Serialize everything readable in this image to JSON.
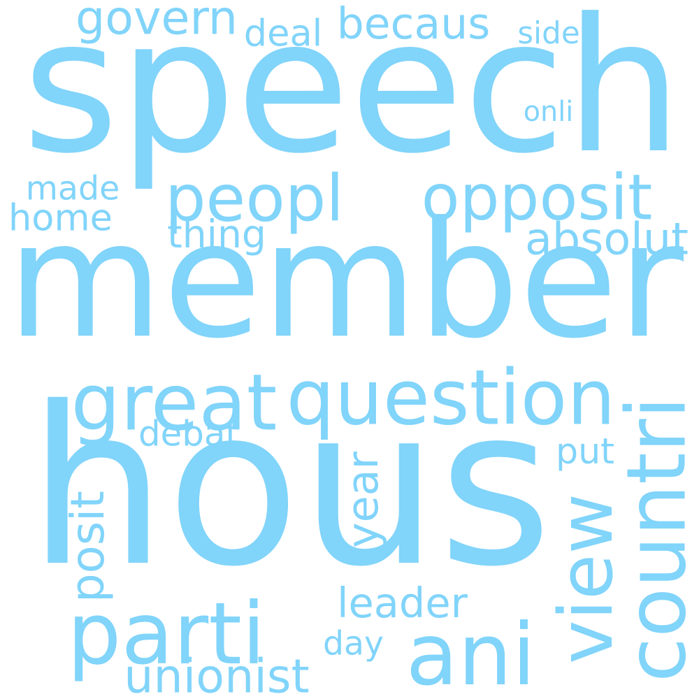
{
  "word_color": "#81D4FA",
  "background_color": "#FFFFFF",
  "words": [
    {
      "text": "speech"
    },
    {
      "text": "member"
    },
    {
      "text": "hous"
    },
    {
      "text": "peopl"
    },
    {
      "text": "opposit"
    },
    {
      "text": "great"
    },
    {
      "text": "question"
    },
    {
      "text": "parti"
    },
    {
      "text": "ani"
    },
    {
      "text": "view"
    },
    {
      "text": "countri"
    },
    {
      "text": "govern"
    },
    {
      "text": "becaus"
    },
    {
      "text": "deal"
    },
    {
      "text": "side"
    },
    {
      "text": "onli"
    },
    {
      "text": "made"
    },
    {
      "text": "home"
    },
    {
      "text": "thing"
    },
    {
      "text": "absolut"
    },
    {
      "text": "debat"
    },
    {
      "text": "put"
    },
    {
      "text": "year"
    },
    {
      "text": "posit"
    },
    {
      "text": "leader"
    },
    {
      "text": "day"
    },
    {
      "text": "unionist"
    }
  ]
}
